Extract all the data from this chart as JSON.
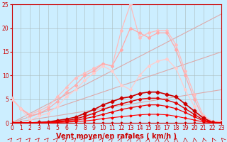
{
  "bg_color": "#cceeff",
  "grid_color": "#aabbbb",
  "xlabel": "Vent moyen/en rafales ( km/h )",
  "xlabel_color": "#cc0000",
  "xlabel_fontsize": 7,
  "tick_color": "#cc0000",
  "tick_fontsize": 5.5,
  "xlim": [
    0,
    23
  ],
  "ylim": [
    0,
    25
  ],
  "yticks": [
    0,
    5,
    10,
    15,
    20,
    25
  ],
  "xticks": [
    0,
    1,
    2,
    3,
    4,
    5,
    6,
    7,
    8,
    9,
    10,
    11,
    12,
    13,
    14,
    15,
    16,
    17,
    18,
    19,
    20,
    21,
    22,
    23
  ],
  "lines": [
    {
      "x": [
        0,
        23
      ],
      "y": [
        0,
        23
      ],
      "color": "#ddaaaa",
      "linewidth": 0.8,
      "marker": null
    },
    {
      "x": [
        0,
        23
      ],
      "y": [
        0,
        15
      ],
      "color": "#ddaaaa",
      "linewidth": 0.8,
      "marker": null
    },
    {
      "x": [
        0,
        23
      ],
      "y": [
        0,
        7
      ],
      "color": "#ddaaaa",
      "linewidth": 0.8,
      "marker": null
    },
    {
      "x": [
        0,
        1,
        2,
        3,
        4,
        5,
        6,
        7,
        8,
        9,
        10,
        11,
        12,
        13,
        14,
        15,
        16,
        17,
        18,
        19,
        20,
        21,
        22,
        23
      ],
      "y": [
        5.2,
        3.0,
        1.8,
        2.5,
        3.5,
        5.5,
        7.5,
        9.5,
        10.5,
        11.5,
        12.5,
        12.0,
        19.5,
        25.0,
        18.0,
        19.0,
        19.5,
        19.5,
        16.5,
        11.0,
        6.0,
        1.5,
        0.3,
        0.3
      ],
      "color": "#ffbbbb",
      "linewidth": 0.9,
      "marker": "D",
      "markersize": 2
    },
    {
      "x": [
        0,
        1,
        2,
        3,
        4,
        5,
        6,
        7,
        8,
        9,
        10,
        11,
        12,
        13,
        14,
        15,
        16,
        17,
        18,
        19,
        20,
        21,
        22,
        23
      ],
      "y": [
        5.0,
        3.0,
        1.5,
        2.0,
        3.0,
        4.5,
        6.5,
        8.0,
        10.0,
        11.0,
        12.5,
        12.0,
        15.5,
        20.0,
        19.0,
        18.0,
        19.0,
        19.0,
        15.5,
        10.0,
        5.0,
        1.0,
        0.2,
        0.2
      ],
      "color": "#ffaaaa",
      "linewidth": 0.9,
      "marker": "D",
      "markersize": 2
    },
    {
      "x": [
        0,
        1,
        2,
        3,
        4,
        5,
        6,
        7,
        8,
        9,
        10,
        11,
        12,
        13,
        14,
        15,
        16,
        17,
        18,
        19,
        20,
        21,
        22,
        23
      ],
      "y": [
        5.0,
        3.0,
        0.5,
        1.5,
        2.0,
        3.5,
        5.5,
        7.0,
        9.0,
        10.5,
        12.0,
        11.0,
        8.0,
        7.0,
        10.0,
        12.0,
        13.0,
        13.5,
        11.5,
        7.0,
        3.5,
        0.5,
        0.1,
        0.1
      ],
      "color": "#ffcccc",
      "linewidth": 0.9,
      "marker": "D",
      "markersize": 2
    },
    {
      "x": [
        0,
        1,
        2,
        3,
        4,
        5,
        6,
        7,
        8,
        9,
        10,
        11,
        12,
        13,
        14,
        15,
        16,
        17,
        18,
        19,
        20,
        21,
        22,
        23
      ],
      "y": [
        0,
        0,
        0,
        0.1,
        0.2,
        0.5,
        0.8,
        1.2,
        2.0,
        2.8,
        3.8,
        4.5,
        5.2,
        5.5,
        6.2,
        6.5,
        6.5,
        6.0,
        5.5,
        4.0,
        2.5,
        1.0,
        0.1,
        0
      ],
      "color": "#cc0000",
      "linewidth": 1.2,
      "marker": "D",
      "markersize": 2.5
    },
    {
      "x": [
        0,
        1,
        2,
        3,
        4,
        5,
        6,
        7,
        8,
        9,
        10,
        11,
        12,
        13,
        14,
        15,
        16,
        17,
        18,
        19,
        20,
        21,
        22,
        23
      ],
      "y": [
        0,
        0,
        0,
        0.05,
        0.1,
        0.3,
        0.5,
        0.8,
        1.4,
        2.0,
        2.8,
        3.5,
        4.0,
        4.5,
        5.0,
        5.2,
        5.2,
        4.8,
        4.2,
        3.0,
        1.8,
        0.6,
        0.05,
        0
      ],
      "color": "#dd0000",
      "linewidth": 1.0,
      "marker": "D",
      "markersize": 2
    },
    {
      "x": [
        0,
        1,
        2,
        3,
        4,
        5,
        6,
        7,
        8,
        9,
        10,
        11,
        12,
        13,
        14,
        15,
        16,
        17,
        18,
        19,
        20,
        21,
        22,
        23
      ],
      "y": [
        0,
        0,
        0,
        0.03,
        0.07,
        0.15,
        0.3,
        0.5,
        0.9,
        1.3,
        1.8,
        2.3,
        2.8,
        3.2,
        3.5,
        3.8,
        3.8,
        3.5,
        3.0,
        2.2,
        1.3,
        0.4,
        0.03,
        0
      ],
      "color": "#ee0000",
      "linewidth": 0.9,
      "marker": "D",
      "markersize": 1.8
    },
    {
      "x": [
        0,
        1,
        2,
        3,
        4,
        5,
        6,
        7,
        8,
        9,
        10,
        11,
        12,
        13,
        14,
        15,
        16,
        17,
        18,
        19,
        20,
        21,
        22,
        23
      ],
      "y": [
        0,
        0,
        0,
        0.01,
        0.03,
        0.08,
        0.15,
        0.25,
        0.4,
        0.6,
        0.9,
        1.1,
        1.3,
        1.5,
        1.7,
        1.8,
        1.8,
        1.7,
        1.4,
        1.0,
        0.6,
        0.2,
        0.01,
        0
      ],
      "color": "#ff0000",
      "linewidth": 0.8,
      "marker": "D",
      "markersize": 1.5
    },
    {
      "x": [
        0,
        1,
        2,
        3,
        4,
        5,
        6,
        7,
        8,
        9,
        10,
        11,
        12,
        13,
        14,
        15,
        16,
        17,
        18,
        19,
        20,
        21,
        22,
        23
      ],
      "y": [
        0,
        0,
        0,
        0,
        0,
        0,
        0,
        0,
        0,
        0,
        0,
        0,
        0,
        0,
        0,
        0,
        0,
        0,
        0,
        0,
        0,
        0,
        0,
        0
      ],
      "color": "#cc0000",
      "linewidth": 0.8,
      "marker": "D",
      "markersize": 1.5
    }
  ],
  "arrow_angles": [
    -45,
    -45,
    -45,
    -45,
    -45,
    -45,
    -45,
    -45,
    -45,
    -45,
    -40,
    -35,
    -30,
    -25,
    -20,
    -15,
    -10,
    -5,
    0,
    5,
    10,
    20,
    30,
    45
  ]
}
